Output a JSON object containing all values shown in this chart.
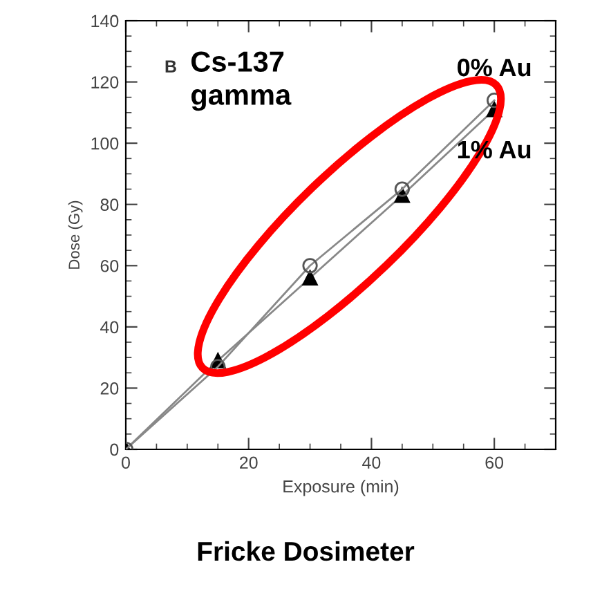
{
  "chart_data": {
    "type": "line",
    "title": "Fricke Dosimeter",
    "xlabel": "Exposure (min)",
    "ylabel": "Dose (Gy)",
    "annotations": [
      "B",
      "Cs-137\ngamma"
    ],
    "series": [
      {
        "name": "0% Au",
        "color": "#555555",
        "marker": "circle",
        "x": [
          0,
          15,
          30,
          45,
          60
        ],
        "values": [
          0,
          27,
          60,
          85,
          114
        ]
      },
      {
        "name": "1% Au",
        "color": "#000000",
        "marker": "triangle",
        "x": [
          0,
          15,
          30,
          45,
          60
        ],
        "values": [
          0,
          29,
          56,
          83,
          111
        ]
      }
    ],
    "xlim": [
      0,
      70
    ],
    "xticks": [
      0,
      20,
      40,
      60
    ],
    "ylim": [
      0,
      140
    ],
    "yticks": [
      0,
      20,
      40,
      60,
      80,
      100,
      120,
      140
    ],
    "grid": false,
    "legend": false,
    "line_style": "solid"
  }
}
